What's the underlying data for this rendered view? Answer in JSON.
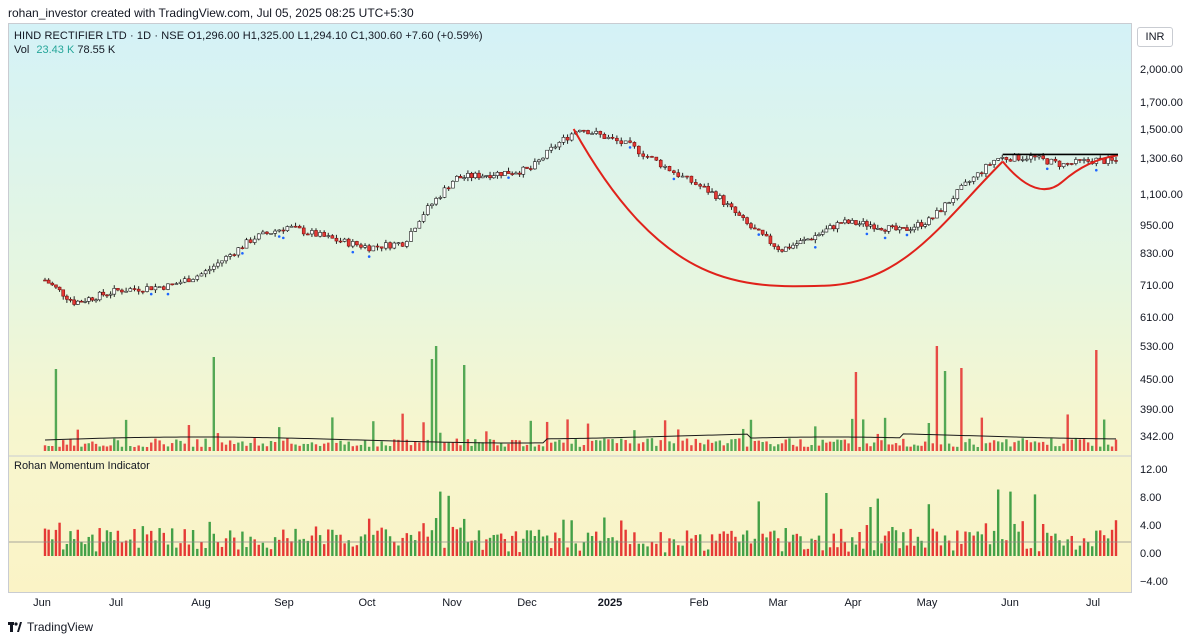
{
  "header": {
    "credit": "rohan_investor created with TradingView.com, Jul 05, 2025 08:25 UTC+5:30",
    "symbol_line": "HIND RECTIFIER LTD · 1D · NSE  O1,296.00  H1,325.00  L1,294.10  C1,300.60  +7.60 (+0.59%)",
    "vol_label": "Vol",
    "vol_value": "23.43 K",
    "vol_ma": "78.55 K",
    "indicator_title": "Rohan Momentum Indicator",
    "currency": "INR"
  },
  "footer": {
    "brand": "TradingView"
  },
  "colors": {
    "up": "#26a69a",
    "up_bar": "#43a047",
    "down": "#e53935",
    "pattern": "#e0221b",
    "resistance": "#000000"
  },
  "chart_data": [
    {
      "type": "candlestick",
      "scale": "log",
      "x_labels": [
        "Jun",
        "Jul",
        "Aug",
        "Sep",
        "Oct",
        "Nov",
        "Dec",
        "2025",
        "Feb",
        "Mar",
        "Apr",
        "May",
        "Jun",
        "Jul"
      ],
      "y_ticks": [
        "2,000.00",
        "1,700.00",
        "1,500.00",
        "1,300.60",
        "1,100.00",
        "950.00",
        "830.00",
        "710.00",
        "610.00",
        "530.00",
        "450.00",
        "390.00",
        "342.00"
      ],
      "ohlc_last": {
        "open": 1296.0,
        "high": 1325.0,
        "low": 1294.1,
        "close": 1300.6,
        "change": 7.6,
        "change_pct": 0.59
      },
      "trend_anchors": [
        {
          "m": 0.0,
          "v": 735
        },
        {
          "m": 0.4,
          "v": 660
        },
        {
          "m": 1.0,
          "v": 700
        },
        {
          "m": 1.6,
          "v": 715
        },
        {
          "m": 2.0,
          "v": 760
        },
        {
          "m": 2.6,
          "v": 900
        },
        {
          "m": 3.0,
          "v": 950
        },
        {
          "m": 3.6,
          "v": 890
        },
        {
          "m": 4.0,
          "v": 860
        },
        {
          "m": 4.4,
          "v": 880
        },
        {
          "m": 4.6,
          "v": 1000
        },
        {
          "m": 5.0,
          "v": 1200
        },
        {
          "m": 5.6,
          "v": 1230
        },
        {
          "m": 6.0,
          "v": 1250
        },
        {
          "m": 6.3,
          "v": 1400
        },
        {
          "m": 6.6,
          "v": 1530
        },
        {
          "m": 7.2,
          "v": 1400
        },
        {
          "m": 7.8,
          "v": 1200
        },
        {
          "m": 8.2,
          "v": 1100
        },
        {
          "m": 8.6,
          "v": 950
        },
        {
          "m": 9.0,
          "v": 850
        },
        {
          "m": 9.4,
          "v": 900
        },
        {
          "m": 9.8,
          "v": 970
        },
        {
          "m": 10.2,
          "v": 960
        },
        {
          "m": 10.6,
          "v": 930
        },
        {
          "m": 11.0,
          "v": 980
        },
        {
          "m": 11.4,
          "v": 1150
        },
        {
          "m": 11.8,
          "v": 1320
        },
        {
          "m": 12.2,
          "v": 1330
        },
        {
          "m": 12.6,
          "v": 1280
        },
        {
          "m": 13.0,
          "v": 1310
        },
        {
          "m": 13.2,
          "v": 1300
        }
      ],
      "cup_handle": {
        "cup_start": {
          "m": 6.55,
          "v": 1520
        },
        "cup_bottom": {
          "m": 9.6,
          "v": 715
        },
        "cup_end": {
          "m": 11.9,
          "v": 1300
        },
        "handle_bottom": {
          "m": 12.5,
          "v": 1180
        },
        "handle_end": {
          "m": 13.3,
          "v": 1340
        },
        "resistance_from": {
          "m": 11.9,
          "v": 1345
        },
        "resistance_to": {
          "m": 13.3,
          "v": 1345
        }
      }
    },
    {
      "type": "bar",
      "name": "Vol",
      "y_range": [
        0,
        530
      ],
      "spikes": [
        {
          "m": 4.8,
          "v": 540
        },
        {
          "m": 4.75,
          "v": 460
        },
        {
          "m": 2.1,
          "v": 470
        },
        {
          "m": 11.1,
          "v": 535
        },
        {
          "m": 13.0,
          "v": 505
        },
        {
          "m": 5.1,
          "v": 430
        },
        {
          "m": 11.4,
          "v": 415
        },
        {
          "m": 11.2,
          "v": 400
        },
        {
          "m": 10.0,
          "v": 395
        },
        {
          "m": 0.15,
          "v": 410
        }
      ]
    },
    {
      "type": "bar",
      "name": "Rohan Momentum Indicator",
      "y_ticks": [
        "12.00",
        "8.00",
        "4.00",
        "0.00",
        "−4.00"
      ],
      "y_range": [
        -5,
        13
      ],
      "baseline": 2.0,
      "spikes": [
        {
          "m": 4.85,
          "v": 9.2
        },
        {
          "m": 4.95,
          "v": 8.6
        },
        {
          "m": 9.6,
          "v": 9.0
        },
        {
          "m": 10.3,
          "v": 8.2
        },
        {
          "m": 11.8,
          "v": 9.5
        },
        {
          "m": 11.95,
          "v": 9.2
        },
        {
          "m": 12.25,
          "v": 8.8
        },
        {
          "m": 11.0,
          "v": 7.4
        },
        {
          "m": 10.2,
          "v": 7.0
        },
        {
          "m": 8.7,
          "v": 7.8
        },
        {
          "m": 6.9,
          "v": 5.5
        }
      ]
    }
  ]
}
